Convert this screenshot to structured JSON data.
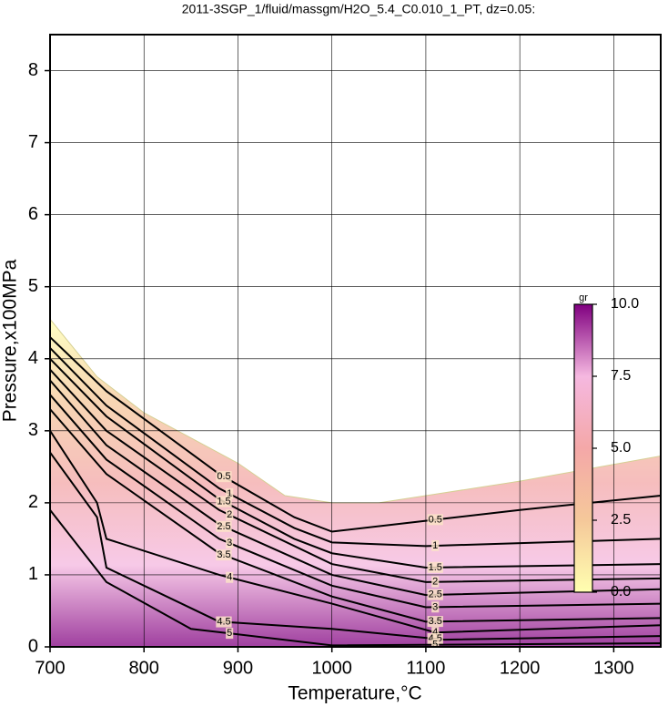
{
  "chart_data": {
    "type": "contour",
    "title": "2011-3SGP_1/fluid/massgm/H2O_5.4_C0.010_1_PT, dz=0.05:",
    "x_label": "Temperature,°C",
    "y_label": "Pressure,x100MPa",
    "xlim": [
      700,
      1350
    ],
    "ylim": [
      0,
      8.5
    ],
    "xticks": [
      700,
      800,
      900,
      1000,
      1100,
      1200,
      1300
    ],
    "yticks": [
      0,
      1,
      2,
      3,
      4,
      5,
      6,
      7,
      8
    ],
    "grid": true,
    "domain": {
      "x": [
        700,
        750,
        800,
        850,
        900,
        950,
        1000,
        1050,
        1100,
        1200,
        1350
      ],
      "y": [
        4.55,
        3.75,
        3.25,
        2.9,
        2.55,
        2.1,
        2.0,
        2.0,
        2.1,
        2.3,
        2.65
      ]
    },
    "contours": [
      {
        "level": 0.5,
        "x": [
          700,
          760,
          880,
          960,
          1000,
          1100,
          1200,
          1350
        ],
        "y": [
          4.3,
          3.55,
          2.4,
          1.8,
          1.6,
          1.75,
          1.9,
          2.1
        ]
      },
      {
        "level": 1,
        "x": [
          700,
          760,
          880,
          960,
          1000,
          1100,
          1350
        ],
        "y": [
          4.15,
          3.35,
          2.2,
          1.65,
          1.45,
          1.4,
          1.5
        ]
      },
      {
        "level": 1.5,
        "x": [
          700,
          760,
          880,
          960,
          1000,
          1100,
          1350
        ],
        "y": [
          4.0,
          3.2,
          2.05,
          1.5,
          1.3,
          1.1,
          1.15
        ]
      },
      {
        "level": 2,
        "x": [
          700,
          760,
          880,
          1000,
          1100,
          1350
        ],
        "y": [
          3.85,
          3.0,
          1.9,
          1.15,
          0.9,
          0.95
        ]
      },
      {
        "level": 2.5,
        "x": [
          700,
          760,
          880,
          1000,
          1100,
          1350
        ],
        "y": [
          3.7,
          2.8,
          1.7,
          1.0,
          0.72,
          0.8
        ]
      },
      {
        "level": 3,
        "x": [
          700,
          760,
          880,
          1000,
          1100,
          1350
        ],
        "y": [
          3.5,
          2.6,
          1.5,
          0.85,
          0.55,
          0.6
        ]
      },
      {
        "level": 3.5,
        "x": [
          700,
          760,
          880,
          1000,
          1100,
          1350
        ],
        "y": [
          3.3,
          2.4,
          1.3,
          0.7,
          0.35,
          0.4
        ]
      },
      {
        "level": 4,
        "x": [
          700,
          750,
          760,
          880,
          1000,
          1110,
          1350
        ],
        "y": [
          3.0,
          2.0,
          1.5,
          1.0,
          0.6,
          0.2,
          0.3
        ]
      },
      {
        "level": 4.5,
        "x": [
          700,
          750,
          760,
          880,
          1000,
          1120,
          1350
        ],
        "y": [
          2.7,
          1.8,
          1.1,
          0.35,
          0.25,
          0.1,
          0.15
        ]
      },
      {
        "level": 5,
        "x": [
          700,
          760,
          850,
          1000,
          1350
        ],
        "y": [
          1.9,
          0.9,
          0.25,
          0.02,
          0.05
        ]
      }
    ],
    "colorbar": {
      "label": "gr",
      "lim": [
        0,
        10
      ],
      "ticks": [
        {
          "value": 0,
          "label": "0.0"
        },
        {
          "value": 2.5,
          "label": "2.5"
        },
        {
          "value": 5,
          "label": "5.0"
        },
        {
          "value": 7.5,
          "label": "7.5"
        },
        {
          "value": 10,
          "label": "10.0"
        }
      ],
      "colors": [
        "#ffffb0",
        "#f5c89a",
        "#f4a8a8",
        "#f5b8e0",
        "#800080"
      ]
    }
  }
}
